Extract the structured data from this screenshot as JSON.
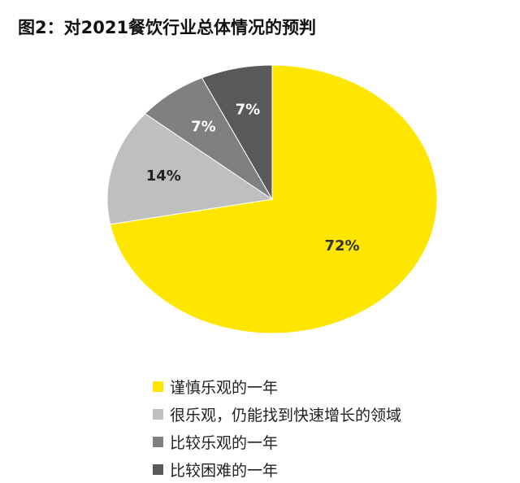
{
  "title": "图2：对2021餐饮行业总体情况的预判",
  "chart_data": {
    "type": "pie",
    "title": "图2：对2021餐饮行业总体情况的预判",
    "start_angle_deg": 0,
    "direction": "clockwise",
    "legend_position": "bottom",
    "slices": [
      {
        "label": "谨慎乐观的一年",
        "value": 72,
        "display": "72%",
        "color": "#ffe600",
        "text_color": "#333333"
      },
      {
        "label": "很乐观，仍能找到快速增长的领域",
        "value": 14,
        "display": "14%",
        "color": "#bfbfbf",
        "text_color": "#222222"
      },
      {
        "label": "比较乐观的一年",
        "value": 7,
        "display": "7%",
        "color": "#808080",
        "text_color": "#ffffff"
      },
      {
        "label": "比较困难的一年",
        "value": 7,
        "display": "7%",
        "color": "#595959",
        "text_color": "#ffffff"
      }
    ]
  }
}
